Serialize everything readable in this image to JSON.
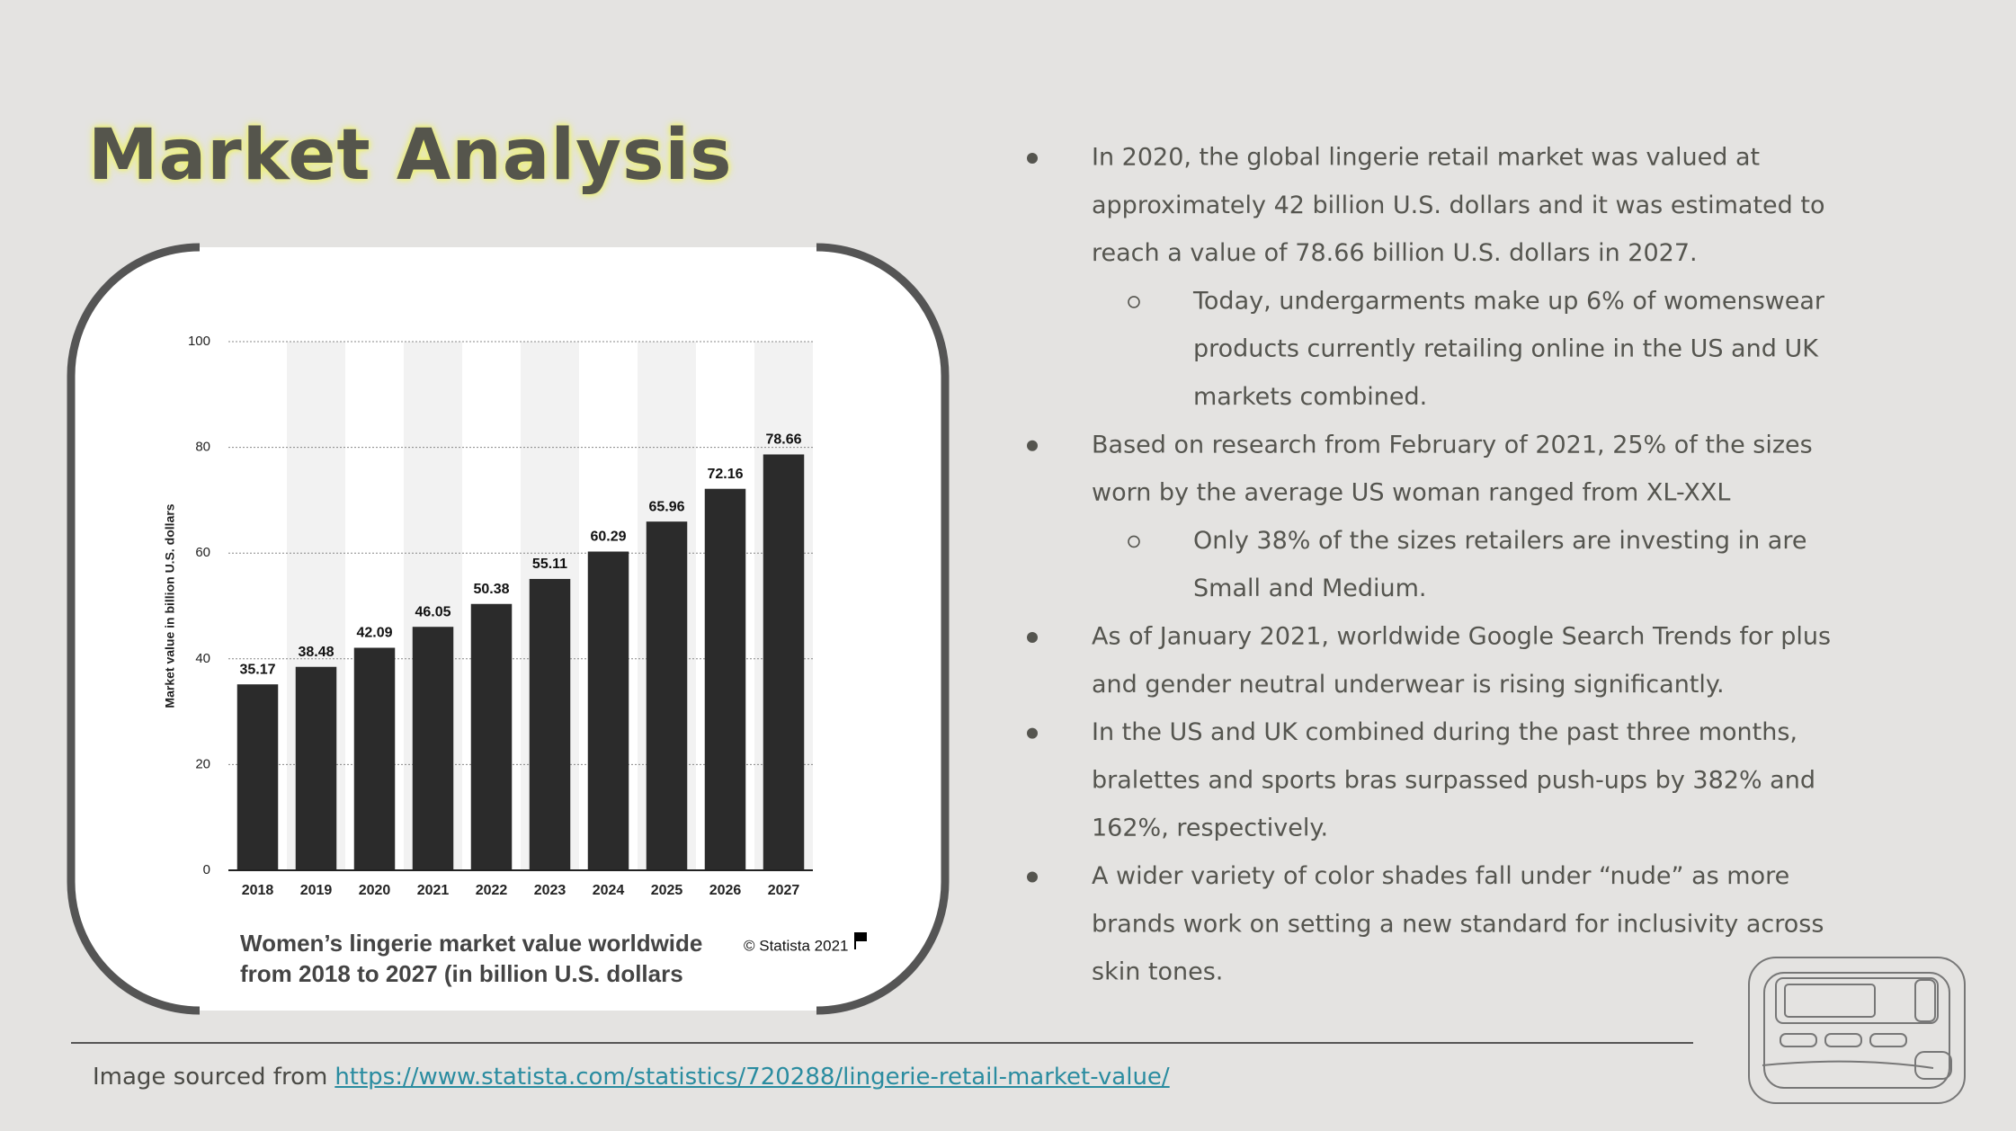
{
  "title": "Market Analysis",
  "chart_data": {
    "type": "bar",
    "title_lines": [
      "Women’s lingerie market value worldwide",
      "from 2018 to 2027 (in billion U.S. dollars"
    ],
    "source": "© Statista 2021",
    "ylabel": "Market value in billion U.S. dollars",
    "categories": [
      "2018",
      "2019",
      "2020",
      "2021",
      "2022",
      "2023",
      "2024",
      "2025",
      "2026",
      "2027"
    ],
    "values": [
      35.17,
      38.48,
      42.09,
      46.05,
      50.38,
      55.11,
      60.29,
      65.96,
      72.16,
      78.66
    ],
    "color": "#2b2b2b",
    "ylim": [
      0,
      100
    ],
    "yticks": [
      0,
      20,
      40,
      60,
      80,
      100
    ],
    "grid": true
  },
  "bullets": [
    {
      "level": 1,
      "lines": [
        "In 2020, the global lingerie retail market was valued at",
        "approximately 42 billion U.S. dollars and it was estimated to",
        "reach a value of 78.66 billion U.S. dollars in 2027."
      ]
    },
    {
      "level": 2,
      "lines": [
        "Today, undergarments make up 6% of womenswear",
        "products currently retailing online in the US and UK",
        "markets combined."
      ]
    },
    {
      "level": 1,
      "lines": [
        "Based on research from February of 2021, 25% of the sizes",
        "worn by the average US woman ranged from XL-XXL"
      ]
    },
    {
      "level": 2,
      "lines": [
        "Only 38% of the sizes retailers are investing in are",
        "Small and Medium."
      ]
    },
    {
      "level": 1,
      "lines": [
        "As of January 2021, worldwide Google Search Trends for plus",
        "and gender neutral underwear is rising significantly."
      ]
    },
    {
      "level": 1,
      "lines": [
        "In the US and UK combined during the past three months,",
        "bralettes and sports bras surpassed push-ups by 382% and",
        "162%, respectively."
      ]
    },
    {
      "level": 1,
      "lines": [
        "A wider variety of color shades fall under “nude” as more",
        "brands work on setting a new standard for inclusivity across",
        "skin tones."
      ]
    }
  ],
  "footer": {
    "prefix": "Image sourced from",
    "link": "https://www.statista.com/statistics/720288/lingerie-retail-market-value/"
  }
}
